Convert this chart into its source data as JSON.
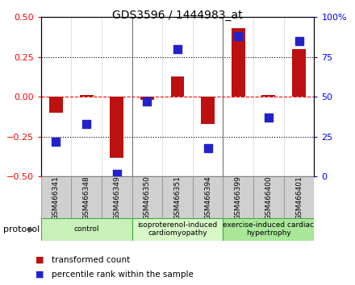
{
  "title": "GDS3596 / 1444983_at",
  "samples": [
    "GSM466341",
    "GSM466348",
    "GSM466349",
    "GSM466350",
    "GSM466351",
    "GSM466394",
    "GSM466399",
    "GSM466400",
    "GSM466401"
  ],
  "transformed_count": [
    -0.1,
    0.01,
    -0.38,
    -0.02,
    0.13,
    -0.17,
    0.43,
    0.01,
    0.3
  ],
  "percentile_rank": [
    22,
    33,
    2,
    47,
    80,
    18,
    88,
    37,
    85
  ],
  "groups": [
    {
      "label": "control",
      "start": 0,
      "end": 3,
      "color": "#c8f0b8"
    },
    {
      "label": "isoproterenol-induced\ncardiomyopathy",
      "start": 3,
      "end": 6,
      "color": "#d8f8c8"
    },
    {
      "label": "exercise-induced cardiac\nhypertrophy",
      "start": 6,
      "end": 9,
      "color": "#a8e898"
    }
  ],
  "bar_color": "#bb1111",
  "dot_color": "#2222cc",
  "left_ylim": [
    -0.5,
    0.5
  ],
  "right_ylim": [
    0,
    100
  ],
  "left_yticks": [
    -0.5,
    -0.25,
    0,
    0.25,
    0.5
  ],
  "right_yticks": [
    0,
    25,
    50,
    75,
    100
  ],
  "right_yticklabels": [
    "0",
    "25",
    "50",
    "75",
    "100%"
  ],
  "dotted_lines": [
    -0.25,
    0.25
  ],
  "bar_width": 0.45,
  "dot_size": 55,
  "protocol_label": "protocol",
  "legend_items": [
    {
      "label": "transformed count",
      "color": "#bb1111"
    },
    {
      "label": "percentile rank within the sample",
      "color": "#2222cc"
    }
  ],
  "sample_box_color": "#d0d0d0",
  "sample_box_edge": "#888888"
}
